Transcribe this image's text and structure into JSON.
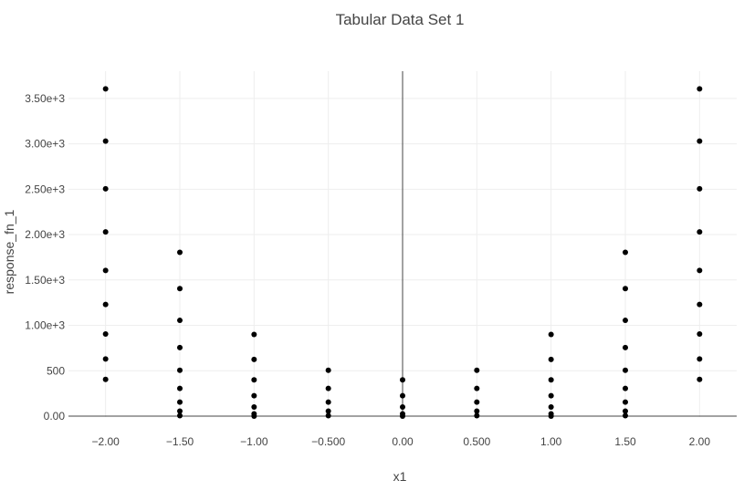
{
  "chart_data": {
    "type": "scatter",
    "title": "Tabular Data Set 1",
    "xlabel": "x1",
    "ylabel": "response_fn_1",
    "xlim": [
      -2.25,
      2.25
    ],
    "ylim": [
      -10,
      3800
    ],
    "grid": true,
    "x_ticks": [
      -2,
      -1.5,
      -1,
      -0.5,
      0,
      0.5,
      1,
      1.5,
      2
    ],
    "x_tick_labels": [
      "−2.00",
      "−1.50",
      "−1.00",
      "−0.500",
      "0.00",
      "0.500",
      "1.00",
      "1.50",
      "2.00"
    ],
    "y_ticks": [
      0,
      500,
      1000,
      1500,
      2000,
      2500,
      3000,
      3500
    ],
    "y_tick_labels": [
      "0.00",
      "500",
      "1.00e+3",
      "1.50e+3",
      "2.00e+3",
      "2.50e+3",
      "3.00e+3",
      "3.50e+3"
    ],
    "marker_color": "#000000",
    "series": [
      {
        "points": [
          [
            -2,
            405
          ],
          [
            -2,
            630
          ],
          [
            -2,
            905
          ],
          [
            -2,
            1230
          ],
          [
            -2,
            1605
          ],
          [
            -2,
            2030
          ],
          [
            -2,
            2505
          ],
          [
            -2,
            3030
          ],
          [
            -2,
            3605
          ],
          [
            -1.5,
            5
          ],
          [
            -1.5,
            55
          ],
          [
            -1.5,
            155
          ],
          [
            -1.5,
            305
          ],
          [
            -1.5,
            505
          ],
          [
            -1.5,
            755
          ],
          [
            -1.5,
            1055
          ],
          [
            -1.5,
            1405
          ],
          [
            -1.5,
            1805
          ],
          [
            -1,
            0
          ],
          [
            -1,
            25
          ],
          [
            -1,
            100
          ],
          [
            -1,
            225
          ],
          [
            -1,
            400
          ],
          [
            -1,
            625
          ],
          [
            -1,
            900
          ],
          [
            -0.5,
            5
          ],
          [
            -0.5,
            55
          ],
          [
            -0.5,
            155
          ],
          [
            -0.5,
            305
          ],
          [
            -0.5,
            505
          ],
          [
            0,
            0
          ],
          [
            0,
            25
          ],
          [
            0,
            100
          ],
          [
            0,
            225
          ],
          [
            0,
            400
          ],
          [
            0.5,
            5
          ],
          [
            0.5,
            55
          ],
          [
            0.5,
            155
          ],
          [
            0.5,
            305
          ],
          [
            0.5,
            505
          ],
          [
            1,
            0
          ],
          [
            1,
            25
          ],
          [
            1,
            100
          ],
          [
            1,
            225
          ],
          [
            1,
            400
          ],
          [
            1,
            625
          ],
          [
            1,
            900
          ],
          [
            1.5,
            5
          ],
          [
            1.5,
            55
          ],
          [
            1.5,
            155
          ],
          [
            1.5,
            305
          ],
          [
            1.5,
            505
          ],
          [
            1.5,
            755
          ],
          [
            1.5,
            1055
          ],
          [
            1.5,
            1405
          ],
          [
            1.5,
            1805
          ],
          [
            2,
            405
          ],
          [
            2,
            630
          ],
          [
            2,
            905
          ],
          [
            2,
            1230
          ],
          [
            2,
            1605
          ],
          [
            2,
            2030
          ],
          [
            2,
            2505
          ],
          [
            2,
            3030
          ],
          [
            2,
            3605
          ]
        ]
      }
    ]
  }
}
